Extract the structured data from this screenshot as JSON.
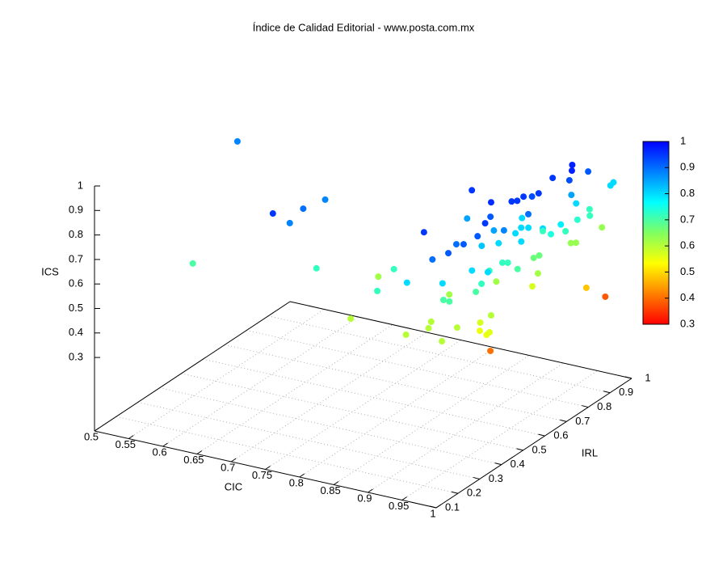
{
  "chart_data": {
    "type": "scatter3d",
    "title": "Índice de Calidad Editorial - www.posta.com.mx",
    "xlabel": "CIC",
    "ylabel": "IRL",
    "zlabel": "ICS",
    "xlim": [
      0.5,
      1
    ],
    "ylim": [
      0.1,
      1
    ],
    "zlim": [
      0,
      1
    ],
    "cblim": [
      0.3,
      1
    ],
    "xticks": [
      0.5,
      0.55,
      0.6,
      0.65,
      0.7,
      0.75,
      0.8,
      0.85,
      0.9,
      0.95,
      1
    ],
    "yticks": [
      0.1,
      0.2,
      0.3,
      0.4,
      0.5,
      0.6,
      0.7,
      0.8,
      0.9,
      1
    ],
    "zticks": [
      0.3,
      0.4,
      0.5,
      0.6,
      0.7,
      0.8,
      0.9,
      1
    ],
    "cbticks": [
      0.3,
      0.4,
      0.5,
      0.6,
      0.7,
      0.8,
      0.9,
      1
    ],
    "grid": true,
    "palette": [
      "#ff0000",
      "#ff8000",
      "#ffff00",
      "#80ff60",
      "#00ffff",
      "#0080ff",
      "#0000ff"
    ],
    "x": [
      0.534,
      0.614,
      0.72,
      0.726,
      0.725,
      0.726,
      0.765,
      0.837,
      0.924,
      0.974,
      0.962,
      0.99,
      0.995,
      0.869,
      0.806,
      0.851,
      0.92,
      0.916,
      0.95,
      0.96,
      0.948,
      0.957,
      0.913,
      0.938,
      0.93,
      0.968,
      0.965,
      0.899,
      0.9,
      0.951,
      0.967,
      0.971,
      0.97,
      0.971,
      0.973,
      0.978,
      0.992,
      0.995,
      0.985,
      0.943,
      0.969,
      0.968,
      0.951,
      0.944,
      0.949,
      0.955,
      0.972,
      0.958,
      0.959,
      0.965,
      0.957,
      0.978,
      0.961,
      0.966,
      0.966,
      0.967,
      0.977,
      0.939,
      0.977,
      0.954,
      0.962,
      0.98,
      0.965,
      0.967,
      0.975,
      0.97,
      0.979,
      0.951,
      0.967,
      0.984,
      0.973,
      0.976,
      0.975,
      0.984,
      0.981,
      0.975,
      0.974,
      0.974,
      0.97,
      0.965,
      0.983,
      0.966,
      0.977,
      0.973,
      0.982,
      0.98,
      0.991,
      0.949
    ],
    "y": [
      0.651,
      0.194,
      0.229,
      0.288,
      0.353,
      0.451,
      0.288,
      0.219,
      0.2,
      0.208,
      0.469,
      0.91,
      0.807,
      0.241,
      0.444,
      0.374,
      0.217,
      0.308,
      0.24,
      0.255,
      0.297,
      0.296,
      0.434,
      0.26,
      0.297,
      0.297,
      0.266,
      0.582,
      0.557,
      0.347,
      0.33,
      0.356,
      0.377,
      0.4,
      0.388,
      0.37,
      0.357,
      0.361,
      0.4,
      0.556,
      0.388,
      0.426,
      0.504,
      0.529,
      0.526,
      0.529,
      0.5,
      0.477,
      0.534,
      0.54,
      0.6,
      0.544,
      0.57,
      0.58,
      0.609,
      0.645,
      0.644,
      0.687,
      0.564,
      0.636,
      0.644,
      0.587,
      0.659,
      0.678,
      0.647,
      0.637,
      0.657,
      0.745,
      0.74,
      0.724,
      0.713,
      0.771,
      0.805,
      0.775,
      0.773,
      0.801,
      0.826,
      0.832,
      0.838,
      0.83,
      0.853,
      0.913,
      0.88,
      0.948,
      0.959,
      0.979,
      0.366,
      0.47
    ],
    "z": [
      0.88,
      0.7,
      0.95,
      0.88,
      0.9,
      0.88,
      0.72,
      0.6,
      0.6,
      0.6,
      0.4,
      0.38,
      0.48,
      0.72,
      0.62,
      0.72,
      0.8,
      0.95,
      0.9,
      0.8,
      0.7,
      0.7,
      0.62,
      0.6,
      0.6,
      0.6,
      0.92,
      0.95,
      0.85,
      0.9,
      0.92,
      0.8,
      0.7,
      0.72,
      0.57,
      0.55,
      0.55,
      0.56,
      0.6,
      0.62,
      0.92,
      0.95,
      0.92,
      0.96,
      0.85,
      0.8,
      0.88,
      0.72,
      0.72,
      0.72,
      0.8,
      0.7,
      0.95,
      0.95,
      0.95,
      0.93,
      0.95,
      0.8,
      0.8,
      0.8,
      0.8,
      0.9,
      0.67,
      0.67,
      0.62,
      0.57,
      0.8,
      0.72,
      0.95,
      0.78,
      0.74,
      0.72,
      0.97,
      0.97,
      0.93,
      0.85,
      0.8,
      0.73,
      0.63,
      0.63,
      0.92,
      0.72,
      0.72,
      0.63,
      0.8,
      0.8,
      0.8,
      0.82
    ]
  }
}
